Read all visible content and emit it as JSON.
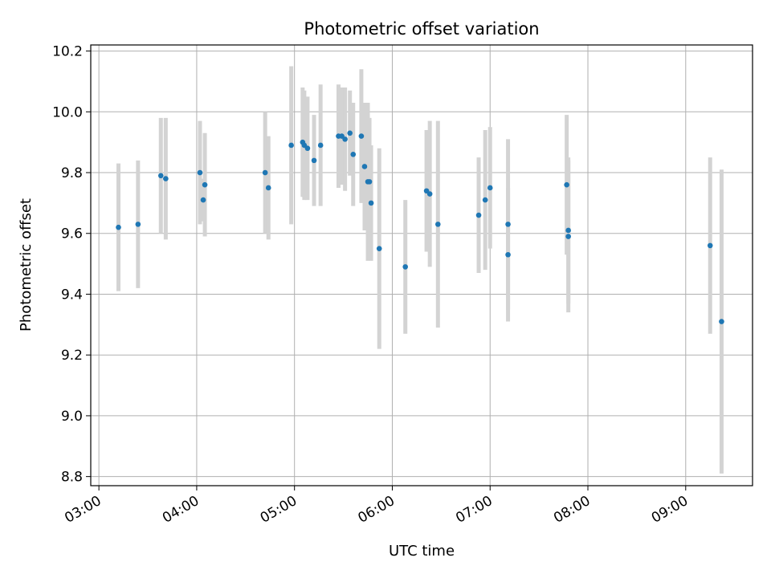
{
  "chart_data": {
    "type": "scatter",
    "title": "Photometric offset variation",
    "xlabel": "UTC time",
    "ylabel": "Photometric offset",
    "xlim": [
      "02:55",
      "09:41"
    ],
    "ylim": [
      8.77,
      10.22
    ],
    "grid": true,
    "x_ticks": [
      "03:00",
      "04:00",
      "05:00",
      "06:00",
      "07:00",
      "08:00",
      "09:00"
    ],
    "y_ticks": [
      "8.8",
      "9.0",
      "9.2",
      "9.4",
      "9.6",
      "9.8",
      "10.0",
      "10.2"
    ],
    "colors": {
      "point": "#1f77b4",
      "errorbar": "#d3d3d3",
      "grid": "#b0b0b0"
    },
    "points": [
      {
        "x": "03:12",
        "y": 9.62,
        "err": 0.21
      },
      {
        "x": "03:24",
        "y": 9.63,
        "err": 0.21
      },
      {
        "x": "03:38",
        "y": 9.79,
        "err": 0.19
      },
      {
        "x": "03:41",
        "y": 9.78,
        "err": 0.2
      },
      {
        "x": "04:02",
        "y": 9.8,
        "err": 0.17
      },
      {
        "x": "04:04",
        "y": 9.71,
        "err": 0.07
      },
      {
        "x": "04:05",
        "y": 9.76,
        "err": 0.17
      },
      {
        "x": "04:42",
        "y": 9.8,
        "err": 0.2
      },
      {
        "x": "04:44",
        "y": 9.75,
        "err": 0.17
      },
      {
        "x": "04:58",
        "y": 9.89,
        "err": 0.26
      },
      {
        "x": "05:05",
        "y": 9.9,
        "err": 0.18
      },
      {
        "x": "05:06",
        "y": 9.89,
        "err": 0.18
      },
      {
        "x": "05:08",
        "y": 9.88,
        "err": 0.17
      },
      {
        "x": "05:12",
        "y": 9.84,
        "err": 0.15
      },
      {
        "x": "05:16",
        "y": 9.89,
        "err": 0.2
      },
      {
        "x": "05:27",
        "y": 9.92,
        "err": 0.17
      },
      {
        "x": "05:29",
        "y": 9.92,
        "err": 0.16
      },
      {
        "x": "05:31",
        "y": 9.91,
        "err": 0.17
      },
      {
        "x": "05:34",
        "y": 9.93,
        "err": 0.14
      },
      {
        "x": "05:36",
        "y": 9.86,
        "err": 0.17
      },
      {
        "x": "05:41",
        "y": 9.92,
        "err": 0.22
      },
      {
        "x": "05:43",
        "y": 9.82,
        "err": 0.21
      },
      {
        "x": "05:45",
        "y": 9.77,
        "err": 0.26
      },
      {
        "x": "05:46",
        "y": 9.77,
        "err": 0.21
      },
      {
        "x": "05:47",
        "y": 9.7,
        "err": 0.19
      },
      {
        "x": "05:52",
        "y": 9.55,
        "err": 0.33
      },
      {
        "x": "06:08",
        "y": 9.49,
        "err": 0.22
      },
      {
        "x": "06:21",
        "y": 9.74,
        "err": 0.2
      },
      {
        "x": "06:23",
        "y": 9.73,
        "err": 0.24
      },
      {
        "x": "06:28",
        "y": 9.63,
        "err": 0.34
      },
      {
        "x": "06:53",
        "y": 9.66,
        "err": 0.19
      },
      {
        "x": "06:57",
        "y": 9.71,
        "err": 0.23
      },
      {
        "x": "07:00",
        "y": 9.75,
        "err": 0.2
      },
      {
        "x": "07:11",
        "y": 9.63,
        "err": 0.28
      },
      {
        "x": "07:11",
        "y": 9.53,
        "err": 0.22
      },
      {
        "x": "07:47",
        "y": 9.76,
        "err": 0.23
      },
      {
        "x": "07:48",
        "y": 9.61,
        "err": 0.24
      },
      {
        "x": "07:48",
        "y": 9.59,
        "err": 0.25
      },
      {
        "x": "09:15",
        "y": 9.56,
        "err": 0.29
      },
      {
        "x": "09:22",
        "y": 9.31,
        "err": 0.5
      }
    ]
  }
}
